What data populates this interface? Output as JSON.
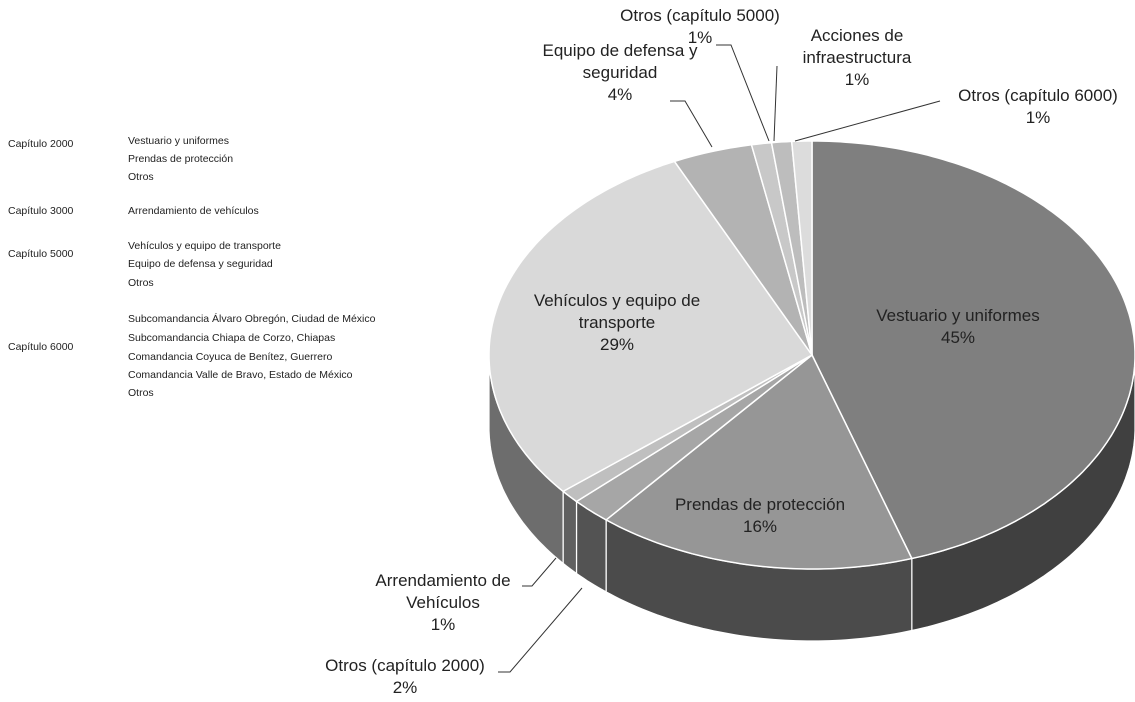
{
  "chart_data": {
    "type": "pie",
    "categories": [
      "Vestuario y uniformes",
      "Prendas de protección",
      "Otros (capítulo 2000)",
      "Arrendamiento de Vehículos",
      "Vehículos y equipo de transporte",
      "Equipo de defensa y seguridad",
      "Otros (capítulo 5000)",
      "Acciones de infraestructura",
      "Otros (capítulo 6000)"
    ],
    "values": [
      45,
      16,
      2,
      1,
      29,
      4,
      1,
      1,
      1
    ],
    "value_labels": [
      "45%",
      "16%",
      "2%",
      "1%",
      "29%",
      "4%",
      "1%",
      "1%",
      "1%"
    ],
    "colors": [
      "#7f7f7f",
      "#969696",
      "#a6a6a6",
      "#bfbfbf",
      "#d9d9d9",
      "#b3b3b3",
      "#c8c8c8",
      "#bdbdbd",
      "#dcdcdc"
    ]
  },
  "side_table": [
    {
      "chapter": "Capítulo 2000",
      "items": [
        "Vestuario y uniformes",
        "Prendas de protección",
        "Otros"
      ]
    },
    {
      "chapter": "Capítulo 3000",
      "items": [
        "Arrendamiento de vehículos"
      ]
    },
    {
      "chapter": "Capítulo 5000",
      "items": [
        "Vehículos y equipo de transporte",
        "Equipo de defensa y seguridad",
        "Otros"
      ]
    },
    {
      "chapter": "Capítulo 6000",
      "items": [
        "Subcomandancia Álvaro Obregón, Ciudad de México",
        "Subcomandancia Chiapa de Corzo, Chiapas",
        "Comandancia Coyuca de Benítez, Guerrero",
        "Comandancia Valle de Bravo, Estado de México",
        "Otros"
      ]
    }
  ]
}
